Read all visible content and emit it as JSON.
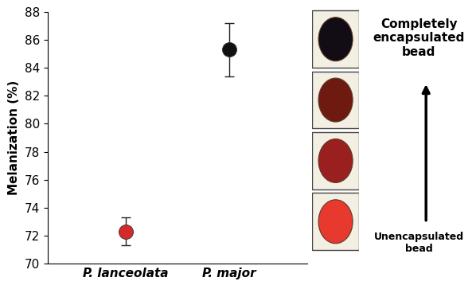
{
  "chart_data": {
    "type": "scatter",
    "y_label": "Melanization (%)",
    "categories": [
      "P. lanceolata",
      "P. major"
    ],
    "values": [
      72.3,
      85.3
    ],
    "errors": [
      1.0,
      1.9
    ],
    "colors": [
      "#d42a2a",
      "#111111"
    ],
    "marker": "circle",
    "ylim": [
      70,
      88
    ],
    "yticks": [
      70,
      72,
      74,
      76,
      78,
      80,
      82,
      84,
      86,
      88
    ],
    "annotations": [
      "Completely\nencapsulated\nbead",
      "Unencapsulated\nbead"
    ]
  }
}
